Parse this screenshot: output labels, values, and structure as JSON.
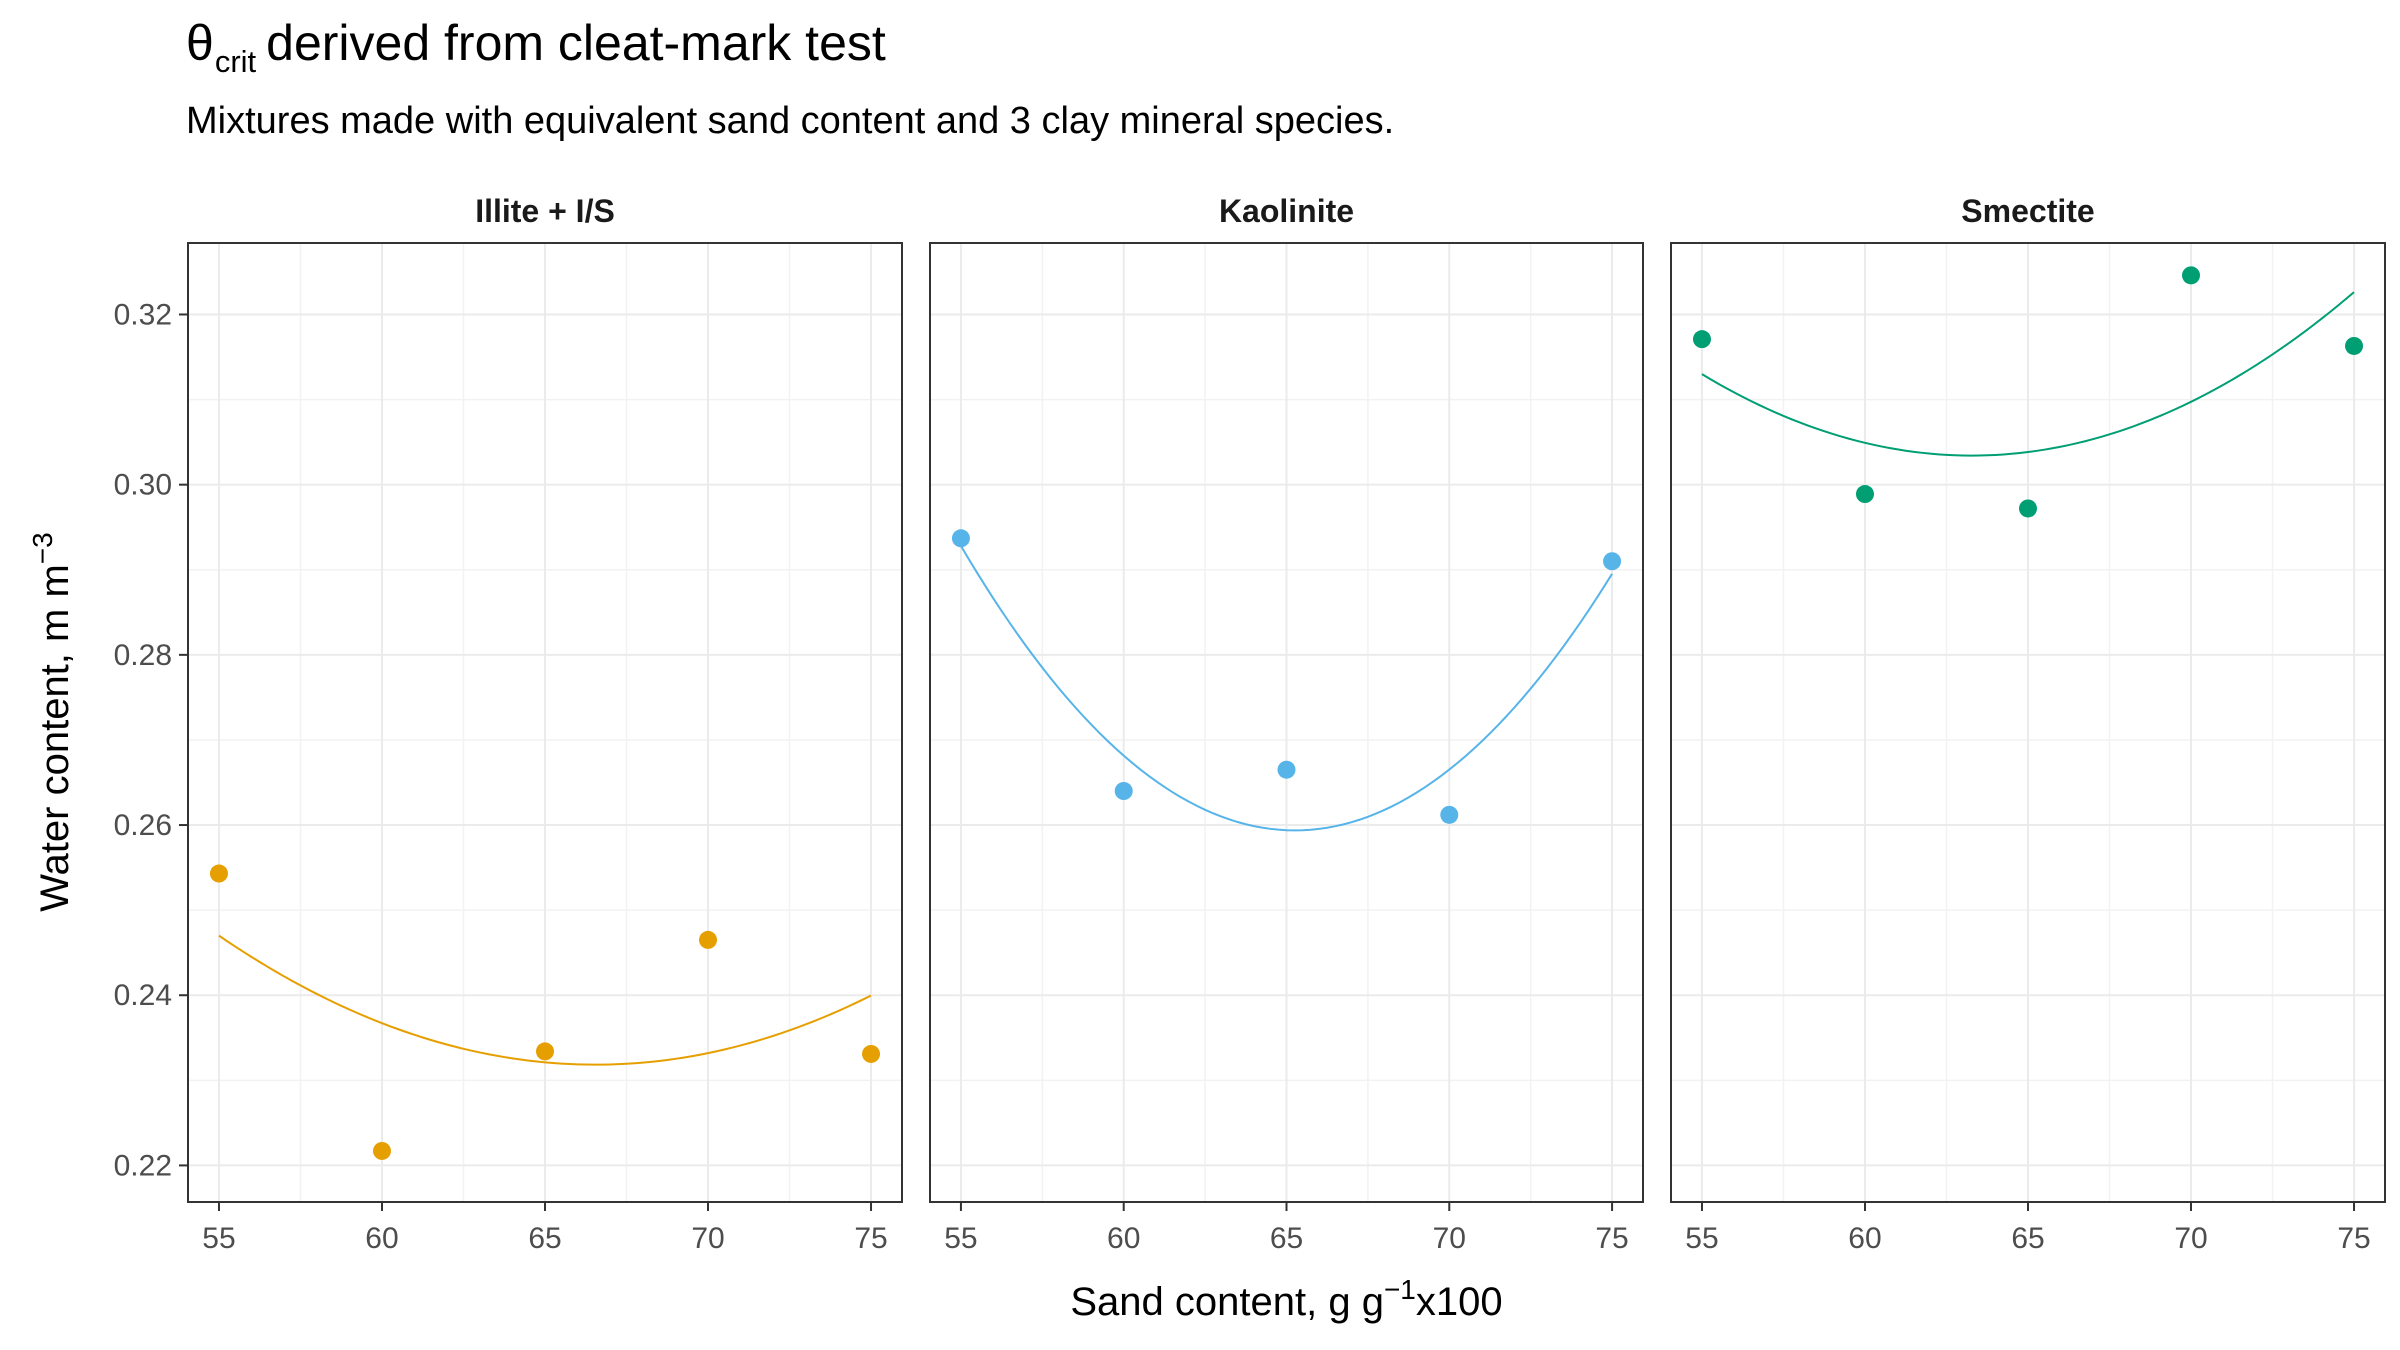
{
  "title": {
    "main": "θ",
    "sub": "crit",
    "rest": "derived from cleat-mark test"
  },
  "subtitle": "Mixtures made with equivalent sand content and 3 clay mineral species.",
  "chart_data": {
    "type": "scatter",
    "xlabel": {
      "text": "Sand content, g g",
      "sup": "−1",
      "suffix": "x100"
    },
    "ylabel": {
      "text": "Water content, m m",
      "sup": "−3"
    },
    "xlim": [
      54.05,
      75.95
    ],
    "ylim": [
      0.2157,
      0.3284
    ],
    "xticks": [
      55,
      60,
      65,
      70,
      75
    ],
    "yticks": [
      0.22,
      0.24,
      0.26,
      0.28,
      0.3,
      0.32
    ],
    "ytick_labels": [
      "0.22",
      "0.24",
      "0.26",
      "0.28",
      "0.30",
      "0.32"
    ],
    "grid": true,
    "legend": "none",
    "panels": [
      {
        "name": "Illite + I/S",
        "color": "#E69F00",
        "x": [
          55,
          60,
          65,
          70,
          75
        ],
        "y": [
          0.2543,
          0.2217,
          0.2334,
          0.2465,
          0.2331
        ],
        "fit": "quadratic"
      },
      {
        "name": "Kaolinite",
        "color": "#56B4E9",
        "x": [
          55,
          60,
          65,
          70,
          75
        ],
        "y": [
          0.2937,
          0.264,
          0.2665,
          0.2612,
          0.291
        ],
        "fit": "quadratic"
      },
      {
        "name": "Smectite",
        "color": "#009E73",
        "x": [
          55,
          60,
          65,
          70,
          75
        ],
        "y": [
          0.3171,
          0.2989,
          0.2972,
          0.3246,
          0.3163
        ],
        "fit": "quadratic"
      }
    ]
  }
}
